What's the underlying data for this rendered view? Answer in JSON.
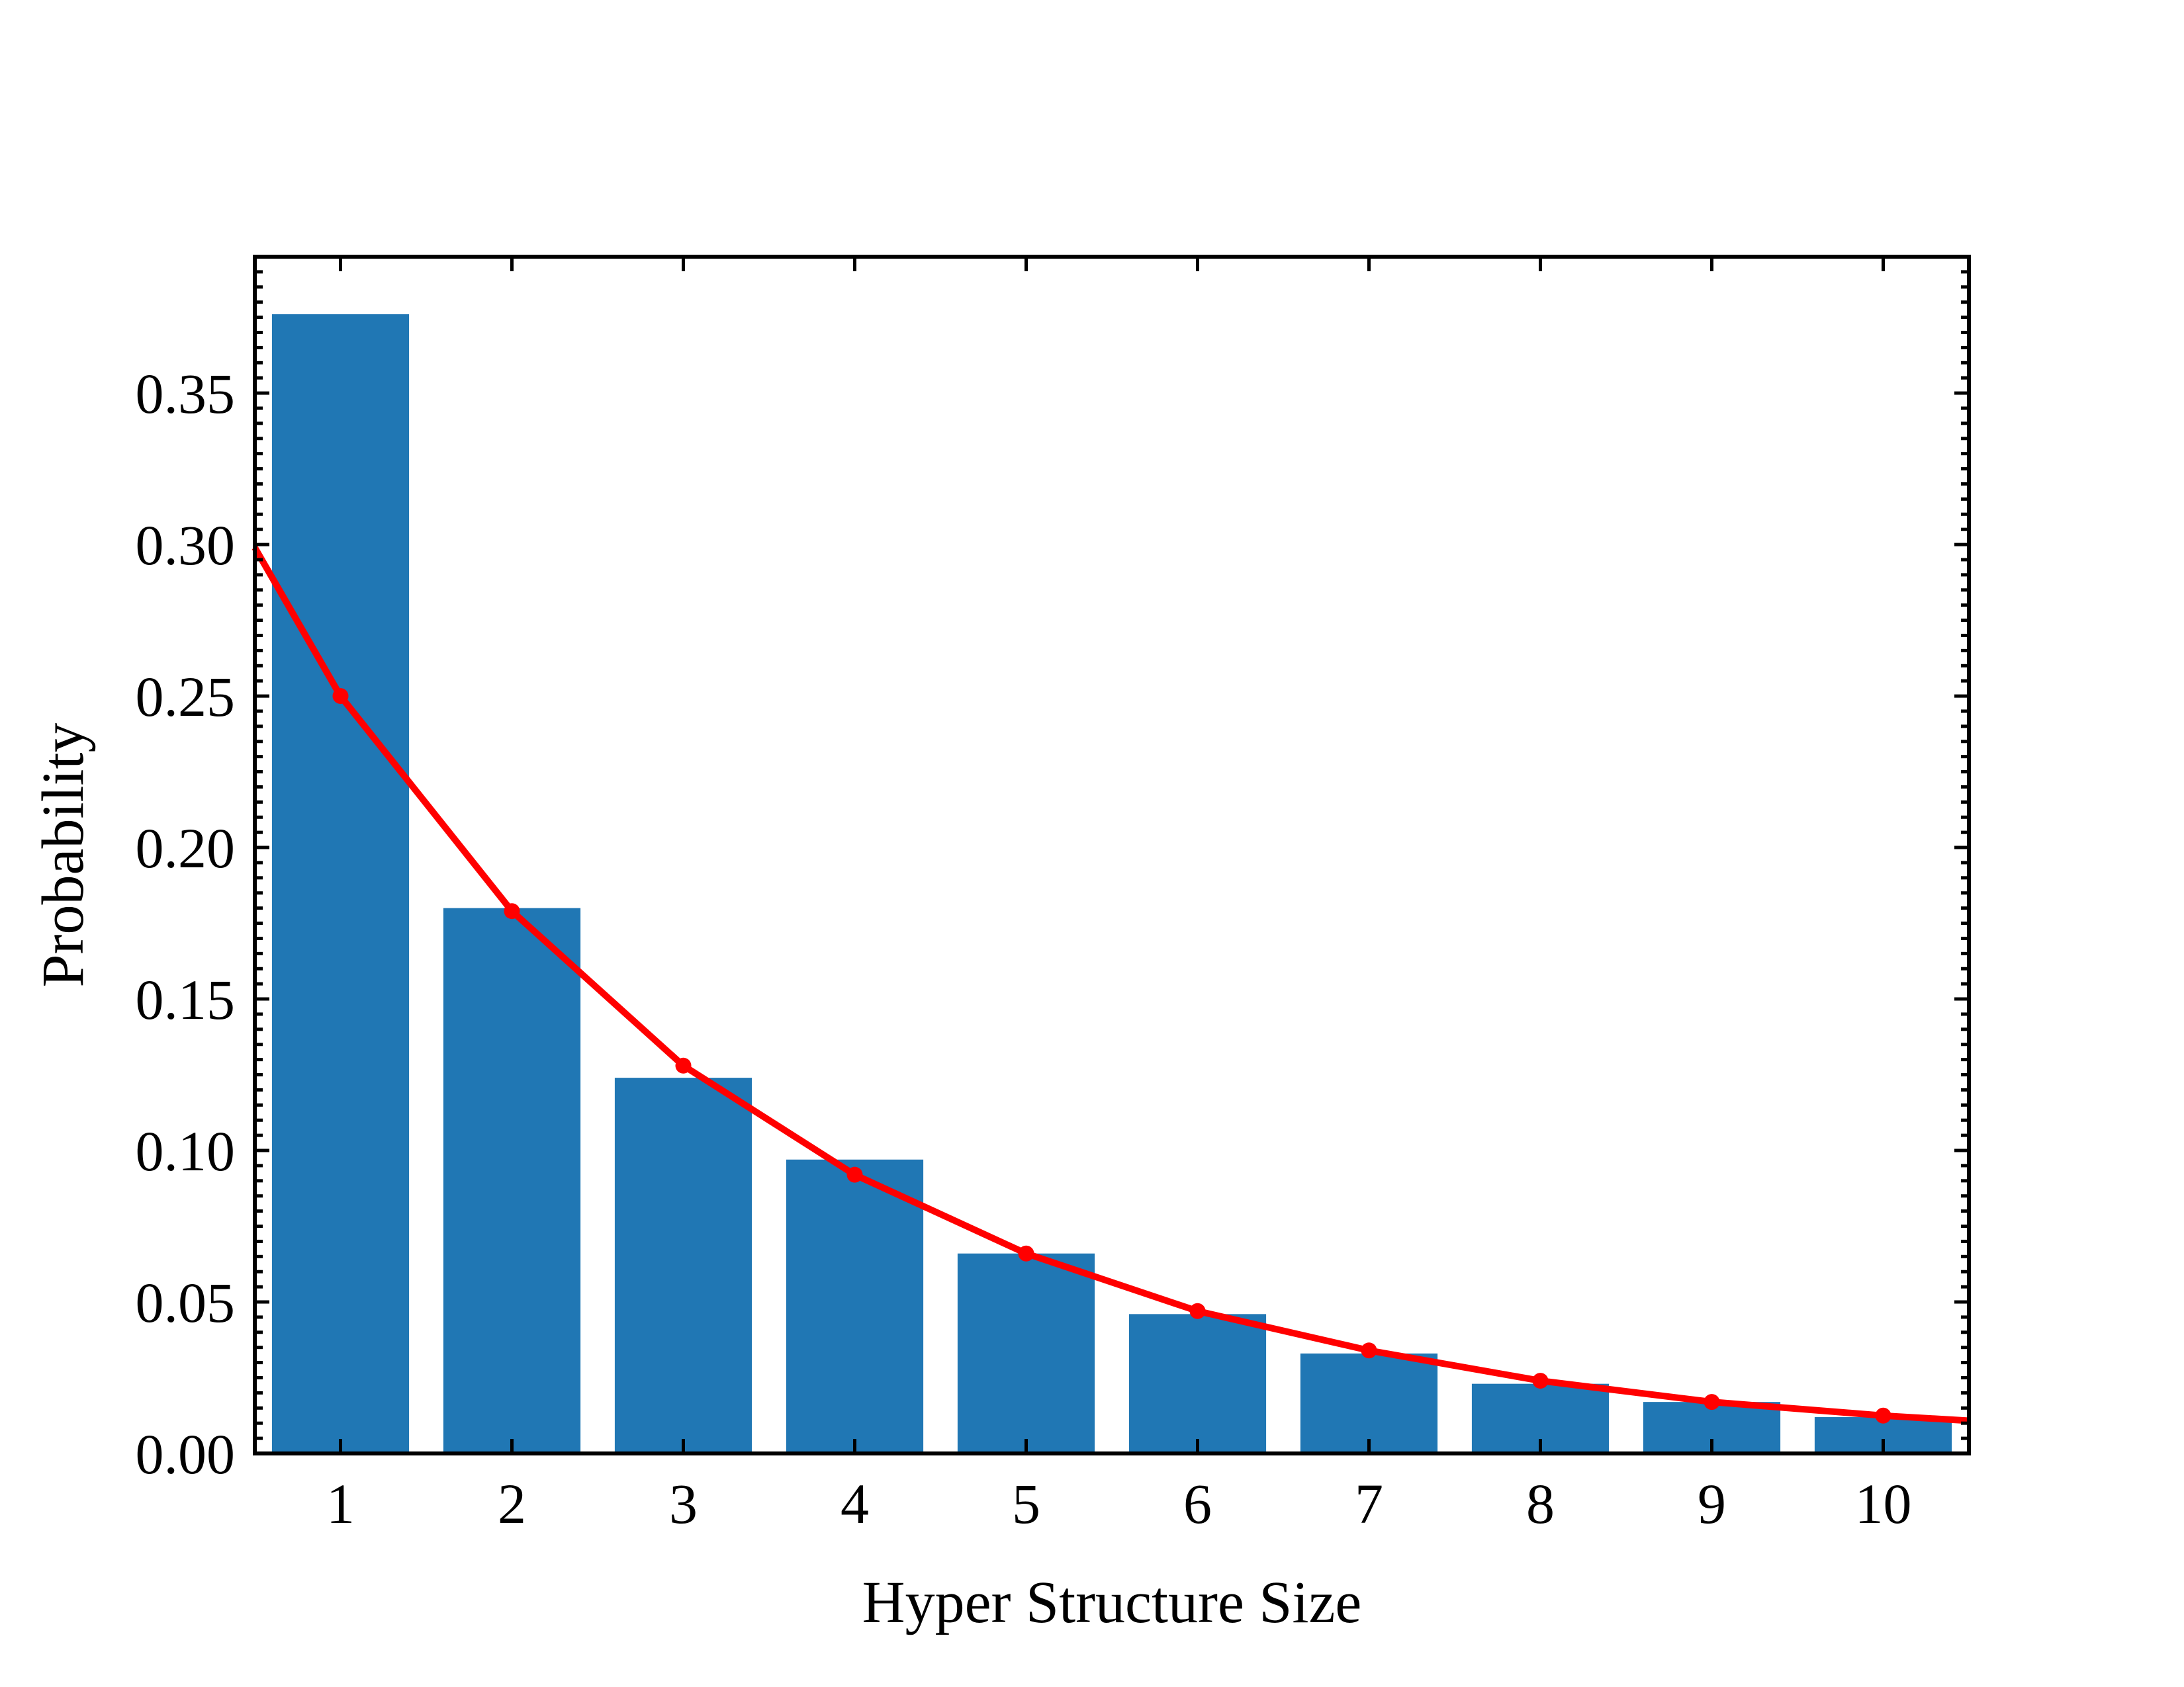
{
  "chart_data": {
    "type": "bar",
    "title": "",
    "xlabel": "Hyper Structure Size",
    "ylabel": "Probability",
    "categories": [
      "1",
      "2",
      "3",
      "4",
      "5",
      "6",
      "7",
      "8",
      "9",
      "10"
    ],
    "series": [
      {
        "kind": "bar",
        "color": "#2077b4",
        "values": [
          0.376,
          0.18,
          0.124,
          0.097,
          0.066,
          0.046,
          0.033,
          0.023,
          0.017,
          0.012
        ]
      },
      {
        "kind": "line",
        "color": "#ff0000",
        "values": [
          0.25,
          0.179,
          0.128,
          0.092,
          0.066,
          0.047,
          0.034,
          0.024,
          0.017,
          0.0125
        ],
        "curve_start": {
          "x": 0.5,
          "y": 0.299
        },
        "curve_end": {
          "x": 10.5,
          "y": 0.0108
        }
      }
    ],
    "xlim": [
      0.5,
      10.5
    ],
    "ylim": [
      0,
      0.395
    ],
    "yticks": [
      "0.00",
      "0.05",
      "0.10",
      "0.15",
      "0.20",
      "0.25",
      "0.30",
      "0.35"
    ],
    "grid": false,
    "legend": "none"
  }
}
